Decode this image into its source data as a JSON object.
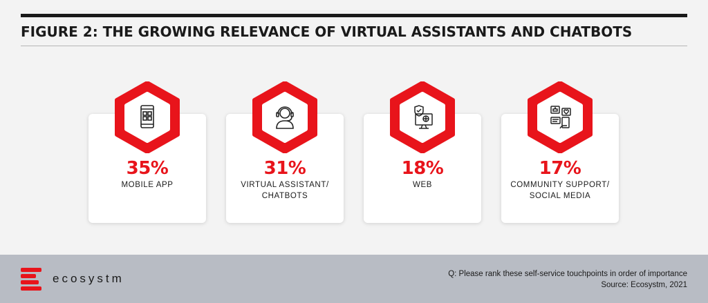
{
  "title": "FIGURE 2: THE GROWING RELEVANCE OF VIRTUAL ASSISTANTS AND CHATBOTS",
  "accent_color": "#e8141b",
  "cards": [
    {
      "icon": "mobile-phone-icon",
      "percent": "35%",
      "label_line1": "MOBILE APP",
      "label_line2": ""
    },
    {
      "icon": "headset-agent-icon",
      "percent": "31%",
      "label_line1": "VIRTUAL ASSISTANT/",
      "label_line2": "CHATBOTS"
    },
    {
      "icon": "web-monitor-shield-icon",
      "percent": "18%",
      "label_line1": "WEB",
      "label_line2": ""
    },
    {
      "icon": "social-media-community-icon",
      "percent": "17%",
      "label_line1": "COMMUNITY SUPPORT/",
      "label_line2": "SOCIAL MEDIA"
    }
  ],
  "footer": {
    "brand": "ecosystm",
    "question": "Q: Please rank these self-service touchpoints in order of importance",
    "source": "Source: Ecosystm, 2021"
  }
}
